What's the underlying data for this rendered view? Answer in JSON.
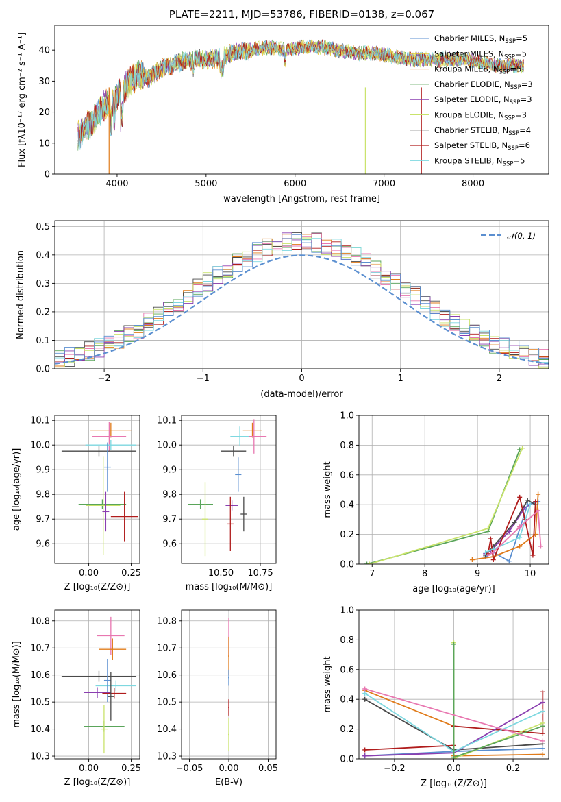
{
  "title": "PLATE=2211, MJD=53786, FIBERID=0138, z=0.067",
  "colors": {
    "Chabrier MILES": "#5b8fd0",
    "Salpeter MILES": "#e9c93a",
    "Kroupa MILES": "#e07b1a",
    "Chabrier ELODIE": "#5aa55a",
    "Salpeter ELODIE": "#8a3fb0",
    "Kroupa ELODIE": "#c9e36b",
    "Chabrier STELIB": "#4a4a4a",
    "Salpeter STELIB": "#b01c1c",
    "Kroupa STELIB": "#7ed8e0",
    "extra": "#e877b0"
  },
  "chart_data": [
    {
      "type": "line",
      "xlabel": "wavelength [Angstrom, rest frame]",
      "ylabel": "Flux [fλ10⁻¹⁷ erg cm⁻² s⁻¹ A⁻¹]",
      "xlim": [
        3300,
        8850
      ],
      "ylim": [
        0,
        48
      ],
      "xticks": [
        4000,
        5000,
        6000,
        7000,
        8000
      ],
      "yticks": [
        0,
        10,
        20,
        30,
        40
      ],
      "legend_position": "top-right",
      "legend": [
        {
          "label": "Chabrier MILES, N",
          "sub": "SSP",
          "suffix": "=5",
          "color": "#5b8fd0"
        },
        {
          "label": "Salpeter MILES, N",
          "sub": "SSP",
          "suffix": "=5",
          "color": "#e9c93a"
        },
        {
          "label": "Kroupa MILES, N",
          "sub": "SSP",
          "suffix": "=5",
          "color": "#e07b1a"
        },
        {
          "label": "Chabrier ELODIE, N",
          "sub": "SSP",
          "suffix": "=3",
          "color": "#5aa55a"
        },
        {
          "label": "Salpeter ELODIE, N",
          "sub": "SSP",
          "suffix": "=3",
          "color": "#8a3fb0"
        },
        {
          "label": "Kroupa ELODIE, N",
          "sub": "SSP",
          "suffix": "=3",
          "color": "#c9e36b"
        },
        {
          "label": "Chabrier STELIB, N",
          "sub": "SSP",
          "suffix": "=4",
          "color": "#4a4a4a"
        },
        {
          "label": "Salpeter STELIB, N",
          "sub": "SSP",
          "suffix": "=6",
          "color": "#b01c1c"
        },
        {
          "label": "Kroupa STELIB, N",
          "sub": "SSP",
          "suffix": "=5",
          "color": "#7ed8e0"
        }
      ],
      "spectrum_anchors": {
        "x": [
          3550,
          3650,
          3750,
          3850,
          3950,
          4050,
          4150,
          4250,
          4350,
          4500,
          4700,
          4900,
          5100,
          5300,
          5500,
          5700,
          5900,
          6100,
          6300,
          6500,
          6700,
          6900,
          7100,
          7300,
          7500,
          7700,
          7900,
          8100,
          8300,
          8500
        ],
        "y": [
          12,
          15,
          18,
          22,
          23,
          27,
          30,
          32,
          31,
          34,
          36,
          37,
          37,
          39,
          40,
          41,
          40,
          41,
          41,
          40,
          39,
          39,
          38,
          37,
          37,
          37,
          37,
          36,
          35,
          35
        ]
      },
      "drops": [
        {
          "x": 3910,
          "color": "#e07b1a"
        },
        {
          "x": 6790,
          "color": "#c9e36b"
        },
        {
          "x": 7420,
          "color": "#b01c1c"
        }
      ]
    },
    {
      "type": "histogram",
      "xlabel": "(data-model)/error",
      "ylabel": "Normed distribution",
      "xlim": [
        -2.5,
        2.5
      ],
      "ylim": [
        0,
        0.52
      ],
      "xticks": [
        -2,
        -1,
        0,
        1,
        2
      ],
      "yticks": [
        0.0,
        0.1,
        0.2,
        0.3,
        0.4,
        0.5
      ],
      "bin_width": 0.1,
      "legend_position": "top-right",
      "legend_label": "𝒩(0, 1)",
      "reference_curve_color": "#5b8fd0"
    },
    {
      "type": "errorbar",
      "xlabel": "Z [log₁₀(Z/Z⊙)]",
      "ylabel": "age  [log₁₀(age/yr)]",
      "xlim": [
        -0.2,
        0.3
      ],
      "ylim": [
        9.52,
        10.12
      ],
      "xticks": [
        0.0,
        0.25
      ],
      "yticks": [
        9.6,
        9.7,
        9.8,
        9.9,
        10.0,
        10.1
      ],
      "points": [
        {
          "x": 0.13,
          "xerr": 0.12,
          "y": 10.06,
          "yerr": 0.03,
          "color": "#e07b1a"
        },
        {
          "x": 0.12,
          "xerr": 0.1,
          "y": 10.035,
          "yerr": 0.06,
          "color": "#e877b0"
        },
        {
          "x": 0.13,
          "xerr": 0.15,
          "y": 10.0,
          "yerr": 0.02,
          "color": "#7ed8e0"
        },
        {
          "x": 0.06,
          "xerr": 0.22,
          "y": 9.975,
          "yerr": 0.02,
          "color": "#4a4a4a"
        },
        {
          "x": 0.11,
          "xerr": 0.02,
          "y": 9.91,
          "yerr": 0.1,
          "color": "#5b8fd0"
        },
        {
          "x": 0.08,
          "xerr": 0.14,
          "y": 9.76,
          "yerr": 0.02,
          "color": "#5aa55a"
        },
        {
          "x": 0.085,
          "xerr": 0.1,
          "y": 9.755,
          "yerr": 0.2,
          "color": "#c9e36b"
        },
        {
          "x": 0.1,
          "xerr": 0.02,
          "y": 9.73,
          "yerr": 0.08,
          "color": "#8a3fb0"
        },
        {
          "x": 0.21,
          "xerr": 0.08,
          "y": 9.71,
          "yerr": 0.1,
          "color": "#b01c1c"
        }
      ]
    },
    {
      "type": "errorbar",
      "xlabel": "mass [log₁₀(M/M⊙)]",
      "ylabel": "",
      "xlim": [
        10.25,
        10.85
      ],
      "ylim": [
        9.52,
        10.12
      ],
      "xticks": [
        10.5,
        10.75
      ],
      "yticks": [
        9.6,
        9.7,
        9.8,
        9.9,
        10.0,
        10.1
      ],
      "points": [
        {
          "x": 10.7,
          "xerr": 0.06,
          "y": 10.06,
          "yerr": 0.03,
          "color": "#e07b1a"
        },
        {
          "x": 10.71,
          "xerr": 0.08,
          "y": 10.035,
          "yerr": 0.07,
          "color": "#e877b0"
        },
        {
          "x": 10.62,
          "xerr": 0.06,
          "y": 10.035,
          "yerr": 0.04,
          "color": "#7ed8e0"
        },
        {
          "x": 10.58,
          "xerr": 0.08,
          "y": 9.975,
          "yerr": 0.02,
          "color": "#4a4a4a"
        },
        {
          "x": 10.61,
          "xerr": 0.02,
          "y": 9.88,
          "yerr": 0.07,
          "color": "#5b8fd0"
        },
        {
          "x": 10.37,
          "xerr": 0.08,
          "y": 9.76,
          "yerr": 0.02,
          "color": "#5aa55a"
        },
        {
          "x": 10.4,
          "xerr": 0.02,
          "y": 9.7,
          "yerr": 0.15,
          "color": "#c9e36b"
        },
        {
          "x": 10.57,
          "xerr": 0.04,
          "y": 9.755,
          "yerr": 0.02,
          "color": "#8a3fb0"
        },
        {
          "x": 10.56,
          "xerr": 0.02,
          "y": 9.68,
          "yerr": 0.11,
          "color": "#b01c1c"
        },
        {
          "x": 10.645,
          "xerr": 0.02,
          "y": 9.72,
          "yerr": 0.07,
          "color": "#4a4a4a"
        }
      ]
    },
    {
      "type": "line",
      "xlabel": "age  [log₁₀(age/yr)]",
      "ylabel": "mass weight",
      "xlim": [
        6.75,
        10.35
      ],
      "ylim": [
        0,
        1.0
      ],
      "xticks": [
        7,
        8,
        9,
        10
      ],
      "yticks": [
        0.0,
        0.2,
        0.4,
        0.6,
        0.8,
        1.0
      ],
      "series": [
        {
          "color": "#5aa55a",
          "x": [
            6.9,
            9.2,
            9.8
          ],
          "y": [
            0.0,
            0.22,
            0.77
          ]
        },
        {
          "color": "#c9e36b",
          "x": [
            6.95,
            9.2,
            9.85
          ],
          "y": [
            0.0,
            0.24,
            0.78
          ]
        },
        {
          "color": "#8a3fb0",
          "x": [
            9.15,
            9.25,
            9.6,
            9.9,
            10.1
          ],
          "y": [
            0.07,
            0.09,
            0.22,
            0.38,
            0.42
          ]
        },
        {
          "color": "#5b8fd0",
          "x": [
            9.15,
            9.3,
            9.6,
            9.95,
            10.15
          ],
          "y": [
            0.05,
            0.08,
            0.02,
            0.4,
            0.42
          ]
        },
        {
          "color": "#e07b1a",
          "x": [
            8.9,
            9.3,
            9.8,
            10.1,
            10.15
          ],
          "y": [
            0.03,
            0.05,
            0.12,
            0.2,
            0.47
          ]
        },
        {
          "color": "#4a4a4a",
          "x": [
            9.15,
            9.3,
            9.7,
            9.95,
            10.1
          ],
          "y": [
            0.06,
            0.12,
            0.28,
            0.43,
            0.4
          ]
        },
        {
          "color": "#b01c1c",
          "x": [
            9.2,
            9.25,
            9.3,
            9.8,
            9.9,
            10.05,
            10.1
          ],
          "y": [
            0.07,
            0.17,
            0.03,
            0.45,
            0.3,
            0.06,
            0.42
          ]
        },
        {
          "color": "#7ed8e0",
          "x": [
            9.15,
            9.3,
            9.8,
            10.0
          ],
          "y": [
            0.08,
            0.1,
            0.18,
            0.4
          ]
        },
        {
          "color": "#e877b0",
          "x": [
            9.2,
            9.3,
            9.8,
            10.15,
            10.2
          ],
          "y": [
            0.06,
            0.08,
            0.25,
            0.36,
            0.12
          ]
        }
      ]
    },
    {
      "type": "errorbar",
      "xlabel": "Z [log₁₀(Z/Z⊙)]",
      "ylabel": "mass [log₁₀(M/M⊙)]",
      "xlim": [
        -0.2,
        0.3
      ],
      "ylim": [
        10.29,
        10.84
      ],
      "xticks": [
        0.0,
        0.25
      ],
      "yticks": [
        10.3,
        10.4,
        10.5,
        10.6,
        10.7,
        10.8
      ],
      "points": [
        {
          "x": 0.13,
          "xerr": 0.08,
          "y": 10.745,
          "yerr": 0.07,
          "color": "#e877b0"
        },
        {
          "x": 0.14,
          "xerr": 0.08,
          "y": 10.695,
          "yerr": 0.04,
          "color": "#e07b1a"
        },
        {
          "x": 0.06,
          "xerr": 0.22,
          "y": 10.595,
          "yerr": 0.02,
          "color": "#4a4a4a"
        },
        {
          "x": 0.16,
          "xerr": 0.12,
          "y": 10.56,
          "yerr": 0.02,
          "color": "#7ed8e0"
        },
        {
          "x": 0.11,
          "xerr": 0.02,
          "y": 10.58,
          "yerr": 0.08,
          "color": "#5b8fd0"
        },
        {
          "x": 0.05,
          "xerr": 0.08,
          "y": 10.535,
          "yerr": 0.02,
          "color": "#8a3fb0"
        },
        {
          "x": 0.15,
          "xerr": 0.07,
          "y": 10.532,
          "yerr": 0.02,
          "color": "#b01c1c"
        },
        {
          "x": 0.13,
          "xerr": 0.02,
          "y": 10.52,
          "yerr": 0.09,
          "color": "#4a4a4a"
        },
        {
          "x": 0.09,
          "xerr": 0.12,
          "y": 10.41,
          "yerr": 0.02,
          "color": "#5aa55a"
        },
        {
          "x": 0.09,
          "xerr": 0.02,
          "y": 10.4,
          "yerr": 0.09,
          "color": "#c9e36b"
        }
      ]
    },
    {
      "type": "errorbar",
      "xlabel": "E(B-V)",
      "ylabel": "",
      "xlim": [
        -0.06,
        0.06
      ],
      "ylim": [
        10.29,
        10.84
      ],
      "xticks": [
        -0.05,
        0.0,
        0.05
      ],
      "yticks": [
        10.3,
        10.4,
        10.5,
        10.6,
        10.7,
        10.8
      ],
      "points": [
        {
          "x": 0.0,
          "xerr": 0.0008,
          "y": 10.74,
          "yerr": 0.07,
          "color": "#e877b0"
        },
        {
          "x": 0.0,
          "xerr": 0.0008,
          "y": 10.67,
          "yerr": 0.07,
          "color": "#e07b1a"
        },
        {
          "x": 0.0,
          "xerr": 0.0008,
          "y": 10.59,
          "yerr": 0.03,
          "color": "#5b8fd0"
        },
        {
          "x": 0.0,
          "xerr": 0.0008,
          "y": 10.48,
          "yerr": 0.03,
          "color": "#b01c1c"
        },
        {
          "x": 0.0,
          "xerr": 0.0008,
          "y": 10.38,
          "yerr": 0.06,
          "color": "#c9e36b"
        }
      ]
    },
    {
      "type": "line",
      "xlabel": "Z [log₁₀(Z/Z⊙)]",
      "ylabel": "mass weight",
      "xlim": [
        -0.32,
        0.32
      ],
      "ylim": [
        0,
        1.0
      ],
      "xticks": [
        -0.2,
        0.0,
        0.2
      ],
      "yticks": [
        0.0,
        0.2,
        0.4,
        0.6,
        0.8,
        1.0
      ],
      "series": [
        {
          "color": "#e07b1a",
          "x": [
            -0.3,
            0.0,
            0.0,
            0.3
          ],
          "y": [
            0.46,
            0.22,
            0.02,
            0.03
          ]
        },
        {
          "color": "#4a4a4a",
          "x": [
            -0.3,
            0.0,
            0.3
          ],
          "y": [
            0.4,
            0.06,
            0.1
          ]
        },
        {
          "color": "#b01c1c",
          "x": [
            -0.3,
            0.0,
            0.0,
            0.3,
            0.3
          ],
          "y": [
            0.06,
            0.09,
            0.22,
            0.17,
            0.45
          ]
        },
        {
          "color": "#5b8fd0",
          "x": [
            -0.3,
            0.0,
            0.3
          ],
          "y": [
            0.02,
            0.05,
            0.07
          ]
        },
        {
          "color": "#8a3fb0",
          "x": [
            -0.3,
            0.0,
            0.3
          ],
          "y": [
            0.02,
            0.04,
            0.38
          ]
        },
        {
          "color": "#7ed8e0",
          "x": [
            -0.3,
            0.0,
            0.3
          ],
          "y": [
            0.44,
            0.05,
            0.32
          ]
        },
        {
          "color": "#c9e36b",
          "x": [
            0.0,
            0.0,
            0.3
          ],
          "y": [
            0.78,
            0.0,
            0.24
          ]
        },
        {
          "color": "#5aa55a",
          "x": [
            0.0,
            0.0,
            0.3
          ],
          "y": [
            0.77,
            0.01,
            0.22
          ]
        },
        {
          "color": "#e877b0",
          "x": [
            -0.3,
            0.3
          ],
          "y": [
            0.47,
            0.12
          ]
        }
      ]
    }
  ]
}
